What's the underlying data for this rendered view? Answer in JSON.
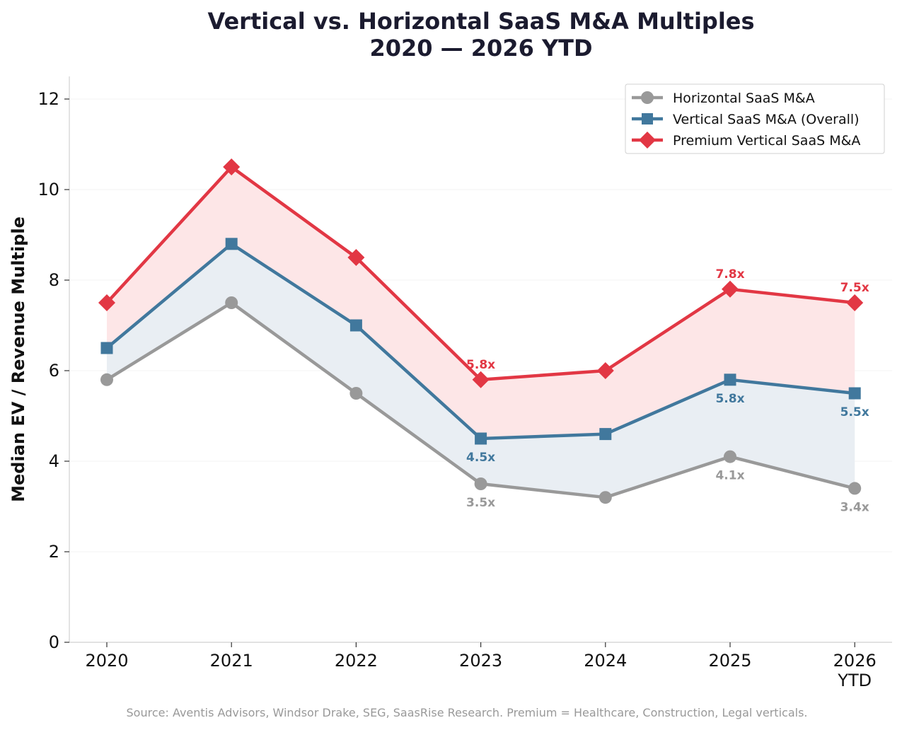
{
  "chart_data": {
    "type": "line",
    "title": "Vertical vs. Horizontal SaaS M&A Multiples",
    "subtitle": "2020 — 2026 YTD",
    "xlabel": "",
    "ylabel": "Median EV / Revenue Multiple",
    "categories": [
      "2020",
      "2021",
      "2022",
      "2023",
      "2024",
      "2025",
      "2026\nYTD"
    ],
    "ylim": [
      0,
      12.5
    ],
    "yticks": [
      0,
      2,
      4,
      6,
      8,
      10,
      12
    ],
    "grid": "horizontal, faint",
    "legend_position": "top-right",
    "series": [
      {
        "name": "Horizontal SaaS M&A",
        "color": "#999999",
        "marker": "circle",
        "values": [
          5.8,
          7.5,
          5.5,
          3.5,
          3.2,
          4.1,
          3.4
        ],
        "labels": [
          {
            "index": 3,
            "text": "3.5x",
            "position": "below"
          },
          {
            "index": 5,
            "text": "4.1x",
            "position": "below"
          },
          {
            "index": 6,
            "text": "3.4x",
            "position": "below"
          }
        ]
      },
      {
        "name": "Vertical SaaS M&A (Overall)",
        "color": "#41789d",
        "marker": "square",
        "values": [
          6.5,
          8.8,
          7.0,
          4.5,
          4.6,
          5.8,
          5.5
        ],
        "labels": [
          {
            "index": 3,
            "text": "4.5x",
            "position": "below"
          },
          {
            "index": 5,
            "text": "5.8x",
            "position": "below"
          },
          {
            "index": 6,
            "text": "5.5x",
            "position": "below"
          }
        ]
      },
      {
        "name": "Premium Vertical SaaS M&A",
        "color": "#e23744",
        "marker": "diamond",
        "values": [
          7.5,
          10.5,
          8.5,
          5.8,
          6.0,
          7.8,
          7.5
        ],
        "labels": [
          {
            "index": 3,
            "text": "5.8x",
            "position": "above"
          },
          {
            "index": 5,
            "text": "7.8x",
            "position": "above"
          },
          {
            "index": 6,
            "text": "7.5x",
            "position": "above"
          }
        ]
      }
    ],
    "bands": [
      {
        "lower": "Horizontal SaaS M&A",
        "upper": "Vertical SaaS M&A (Overall)",
        "color": "#e9eef3"
      },
      {
        "lower": "Vertical SaaS M&A (Overall)",
        "upper": "Premium Vertical SaaS M&A",
        "color": "#fde6e7"
      }
    ]
  },
  "source": "Source: Aventis Advisors, Windsor Drake, SEG, SaasRise Research. Premium = Healthcare, Construction, Legal verticals."
}
